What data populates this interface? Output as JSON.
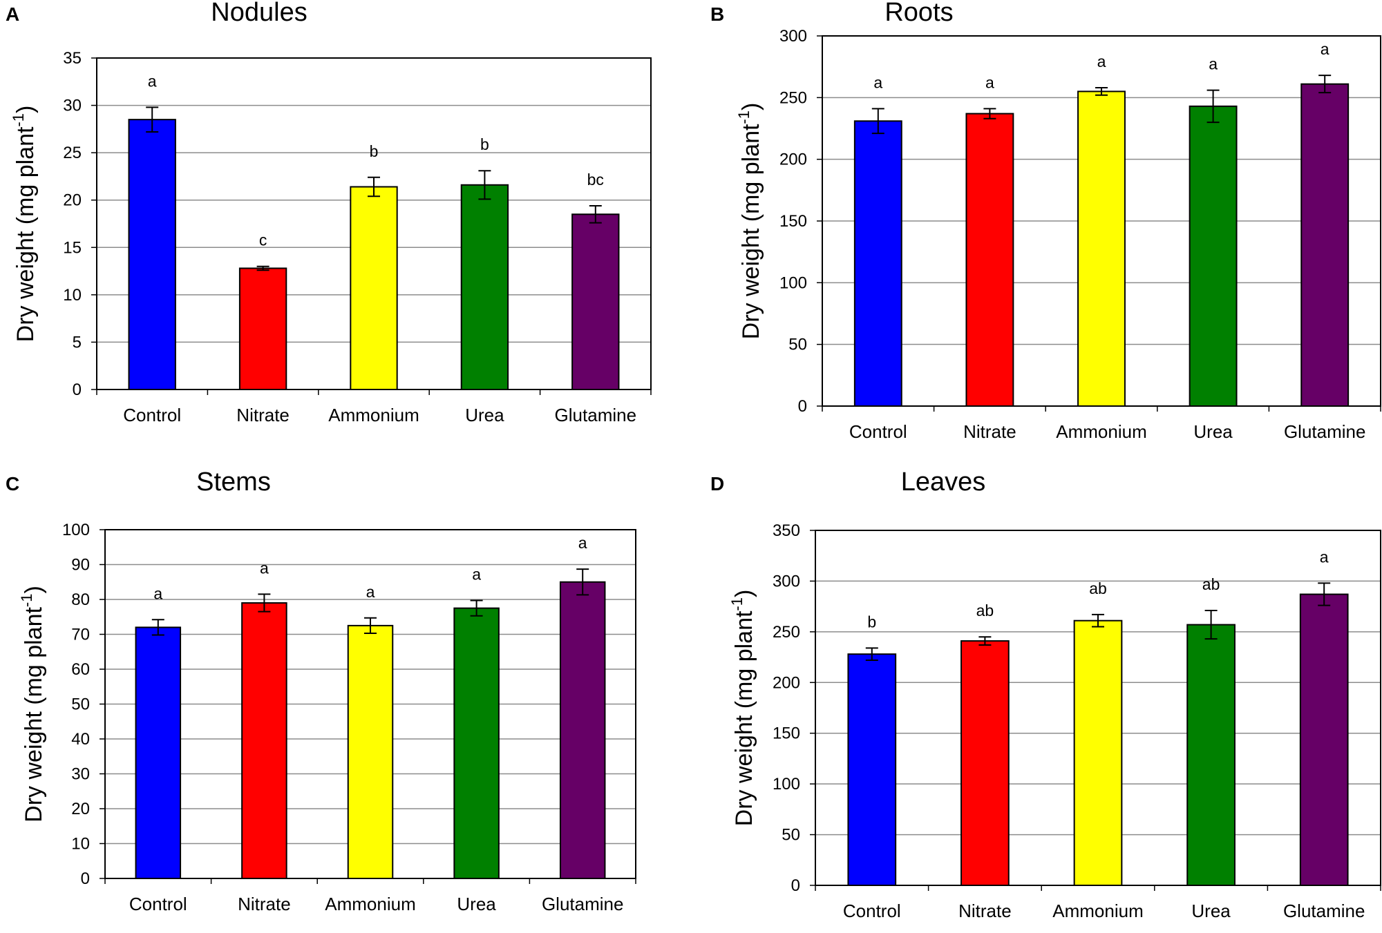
{
  "figure": {
    "y_axis_text": "Dry weight (mg plant",
    "y_axis_superscript": "-1",
    "y_axis_close": ")"
  },
  "colors": {
    "Control": "#0000ff",
    "Nitrate": "#ff0000",
    "Ammonium": "#ffff00",
    "Urea": "#008000",
    "Glutamine": "#660066"
  },
  "chart_data": [
    {
      "panel": "A",
      "type": "bar",
      "title": "Nodules",
      "categories": [
        "Control",
        "Nitrate",
        "Ammonium",
        "Urea",
        "Glutamine"
      ],
      "values": [
        28.5,
        12.8,
        21.4,
        21.6,
        18.5
      ],
      "errors": [
        1.3,
        0.2,
        1.0,
        1.5,
        0.9
      ],
      "significance": [
        "a",
        "c",
        "b",
        "b",
        "bc"
      ],
      "ylabel": "Dry weight (mg plant-1)",
      "ylim": [
        0,
        35
      ],
      "yticks": [
        0,
        5,
        10,
        15,
        20,
        25,
        30,
        35
      ],
      "grid": true
    },
    {
      "panel": "B",
      "type": "bar",
      "title": "Roots",
      "categories": [
        "Control",
        "Nitrate",
        "Ammonium",
        "Urea",
        "Glutamine"
      ],
      "values": [
        231,
        237,
        255,
        243,
        261
      ],
      "errors": [
        10,
        4,
        3,
        13,
        7
      ],
      "significance": [
        "a",
        "a",
        "a",
        "a",
        "a"
      ],
      "ylabel": "Dry weight (mg plant-1)",
      "ylim": [
        0,
        300
      ],
      "yticks": [
        0,
        50,
        100,
        150,
        200,
        250,
        300
      ],
      "grid": true
    },
    {
      "panel": "C",
      "type": "bar",
      "title": "Stems",
      "categories": [
        "Control",
        "Nitrate",
        "Ammonium",
        "Urea",
        "Glutamine"
      ],
      "values": [
        72,
        79,
        72.5,
        77.5,
        85
      ],
      "errors": [
        2.2,
        2.5,
        2.2,
        2.2,
        3.7
      ],
      "significance": [
        "a",
        "a",
        "a",
        "a",
        "a"
      ],
      "ylabel": "Dry weight (mg plant-1)",
      "ylim": [
        0,
        100
      ],
      "yticks": [
        0,
        10,
        20,
        30,
        40,
        50,
        60,
        70,
        80,
        90,
        100
      ],
      "grid": true
    },
    {
      "panel": "D",
      "type": "bar",
      "title": "Leaves",
      "categories": [
        "Control",
        "Nitrate",
        "Ammonium",
        "Urea",
        "Glutamine"
      ],
      "values": [
        228,
        241,
        261,
        257,
        287
      ],
      "errors": [
        6,
        4,
        6,
        14,
        11
      ],
      "significance": [
        "b",
        "ab",
        "ab",
        "ab",
        "a"
      ],
      "ylabel": "Dry weight (mg plant-1)",
      "ylim": [
        0,
        350
      ],
      "yticks": [
        0,
        50,
        100,
        150,
        200,
        250,
        300,
        350
      ],
      "grid": true
    }
  ]
}
